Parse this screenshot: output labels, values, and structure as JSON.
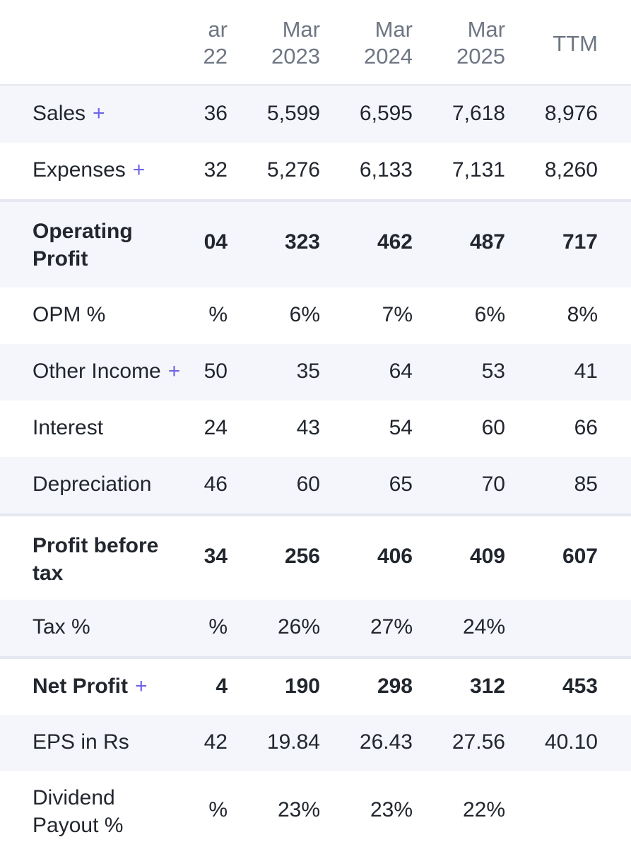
{
  "header": {
    "partial_label": {
      "line1": "ar",
      "line2": "22"
    },
    "columns": [
      {
        "line1": "Mar",
        "line2": "2023"
      },
      {
        "line1": "Mar",
        "line2": "2024"
      },
      {
        "line1": "Mar",
        "line2": "2025"
      },
      {
        "line1": "TTM",
        "line2": ""
      }
    ]
  },
  "rows": [
    {
      "label": "Sales",
      "plus": "+",
      "partial": "36",
      "values": [
        "5,599",
        "6,595",
        "7,618",
        "8,976"
      ]
    },
    {
      "label": "Expenses",
      "plus": "+",
      "partial": "32",
      "values": [
        "5,276",
        "6,133",
        "7,131",
        "8,260"
      ]
    },
    {
      "label": "Operating Profit",
      "plus": "",
      "partial": "04",
      "values": [
        "323",
        "462",
        "487",
        "717"
      ]
    },
    {
      "label": "OPM %",
      "plus": "",
      "partial": "%",
      "values": [
        "6%",
        "7%",
        "6%",
        "8%"
      ]
    },
    {
      "label": "Other Income",
      "plus": "+",
      "partial": "50",
      "values": [
        "35",
        "64",
        "53",
        "41"
      ]
    },
    {
      "label": "Interest",
      "plus": "",
      "partial": "24",
      "values": [
        "43",
        "54",
        "60",
        "66"
      ]
    },
    {
      "label": "Depreciation",
      "plus": "",
      "partial": "46",
      "values": [
        "60",
        "65",
        "70",
        "85"
      ]
    },
    {
      "label": "Profit before tax",
      "plus": "",
      "partial": "34",
      "values": [
        "256",
        "406",
        "409",
        "607"
      ]
    },
    {
      "label": "Tax %",
      "plus": "",
      "partial": "%",
      "values": [
        "26%",
        "27%",
        "24%",
        ""
      ]
    },
    {
      "label": "Net Profit",
      "plus": "+",
      "partial": "4",
      "values": [
        "190",
        "298",
        "312",
        "453"
      ]
    },
    {
      "label": "EPS in Rs",
      "plus": "",
      "partial": "42",
      "values": [
        "19.84",
        "26.43",
        "27.56",
        "40.10"
      ]
    },
    {
      "label": "Dividend Payout %",
      "plus": "",
      "partial": "%",
      "values": [
        "23%",
        "23%",
        "22%",
        ""
      ]
    }
  ],
  "colors": {
    "accent_plus": "#6e64e8",
    "row_shade": "#f5f6fb",
    "header_text": "#6f7683"
  }
}
